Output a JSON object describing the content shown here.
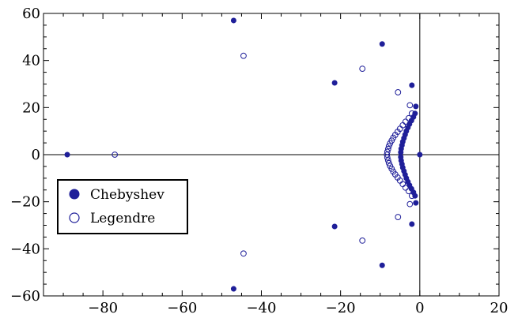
{
  "chart_data": {
    "type": "scatter",
    "title": "",
    "xlabel": "",
    "ylabel": "",
    "xlim": [
      -95,
      20
    ],
    "ylim": [
      -60,
      60
    ],
    "x_ticks": [
      -80,
      -60,
      -40,
      -20,
      0,
      20
    ],
    "y_ticks": [
      -60,
      -40,
      -20,
      0,
      20,
      40,
      60
    ],
    "x_tick_labels": [
      "−80",
      "−60",
      "−40",
      "−20",
      "0",
      "20"
    ],
    "y_tick_labels": [
      "−60",
      "−40",
      "−20",
      "0",
      "20",
      "40",
      "60"
    ],
    "grid": false,
    "legend_position": "left",
    "colors": {
      "series": "#1f1f99",
      "axes": "#000000"
    },
    "series": [
      {
        "name": "Chebyshev",
        "marker": "filled-circle",
        "points": [
          [
            -89,
            0
          ],
          [
            0,
            0
          ],
          [
            -47,
            57
          ],
          [
            -47,
            -57
          ],
          [
            -9.5,
            47
          ],
          [
            -9.5,
            -47
          ],
          [
            -21.5,
            30.5
          ],
          [
            -21.5,
            -30.5
          ],
          [
            -2,
            29.5
          ],
          [
            -2,
            -29.5
          ],
          [
            -1,
            20.5
          ],
          [
            -1,
            -20.5
          ],
          [
            -1.2,
            17.5
          ],
          [
            -1.2,
            -17.5
          ],
          [
            -1.6,
            16
          ],
          [
            -1.6,
            -16
          ],
          [
            -2.1,
            14.5
          ],
          [
            -2.1,
            -14.5
          ],
          [
            -2.6,
            13
          ],
          [
            -2.6,
            -13
          ],
          [
            -3.0,
            11.5
          ],
          [
            -3.0,
            -11.5
          ],
          [
            -3.4,
            10
          ],
          [
            -3.4,
            -10
          ],
          [
            -3.7,
            8.5
          ],
          [
            -3.7,
            -8.5
          ],
          [
            -4.0,
            7
          ],
          [
            -4.0,
            -7
          ],
          [
            -4.3,
            5.5
          ],
          [
            -4.3,
            -5.5
          ],
          [
            -4.5,
            4
          ],
          [
            -4.5,
            -4
          ],
          [
            -4.7,
            2.5
          ],
          [
            -4.7,
            -2.5
          ],
          [
            -4.8,
            1
          ],
          [
            -4.8,
            -1
          ]
        ]
      },
      {
        "name": "Legendre",
        "marker": "open-circle",
        "points": [
          [
            -77,
            0
          ],
          [
            -44.5,
            42
          ],
          [
            -44.5,
            -42
          ],
          [
            -14.5,
            36.5
          ],
          [
            -14.5,
            -36.5
          ],
          [
            -5.5,
            26.5
          ],
          [
            -5.5,
            -26.5
          ],
          [
            -2.5,
            21
          ],
          [
            -2.5,
            -21
          ],
          [
            -2,
            17.5
          ],
          [
            -2,
            -17.5
          ],
          [
            -2.8,
            15.5
          ],
          [
            -2.8,
            -15.5
          ],
          [
            -3.6,
            14
          ],
          [
            -3.6,
            -14
          ],
          [
            -4.3,
            12.5
          ],
          [
            -4.3,
            -12.5
          ],
          [
            -5.0,
            11
          ],
          [
            -5.0,
            -11
          ],
          [
            -5.6,
            9.7
          ],
          [
            -5.6,
            -9.7
          ],
          [
            -6.2,
            8.4
          ],
          [
            -6.2,
            -8.4
          ],
          [
            -6.7,
            7.2
          ],
          [
            -6.7,
            -7.2
          ],
          [
            -7.1,
            6.0
          ],
          [
            -7.1,
            -6.0
          ],
          [
            -7.5,
            4.8
          ],
          [
            -7.5,
            -4.8
          ],
          [
            -7.8,
            3.6
          ],
          [
            -7.8,
            -3.6
          ],
          [
            -8.0,
            2.4
          ],
          [
            -8.0,
            -2.4
          ],
          [
            -8.2,
            1.2
          ],
          [
            -8.2,
            -1.2
          ],
          [
            -8.3,
            0
          ]
        ]
      }
    ]
  }
}
